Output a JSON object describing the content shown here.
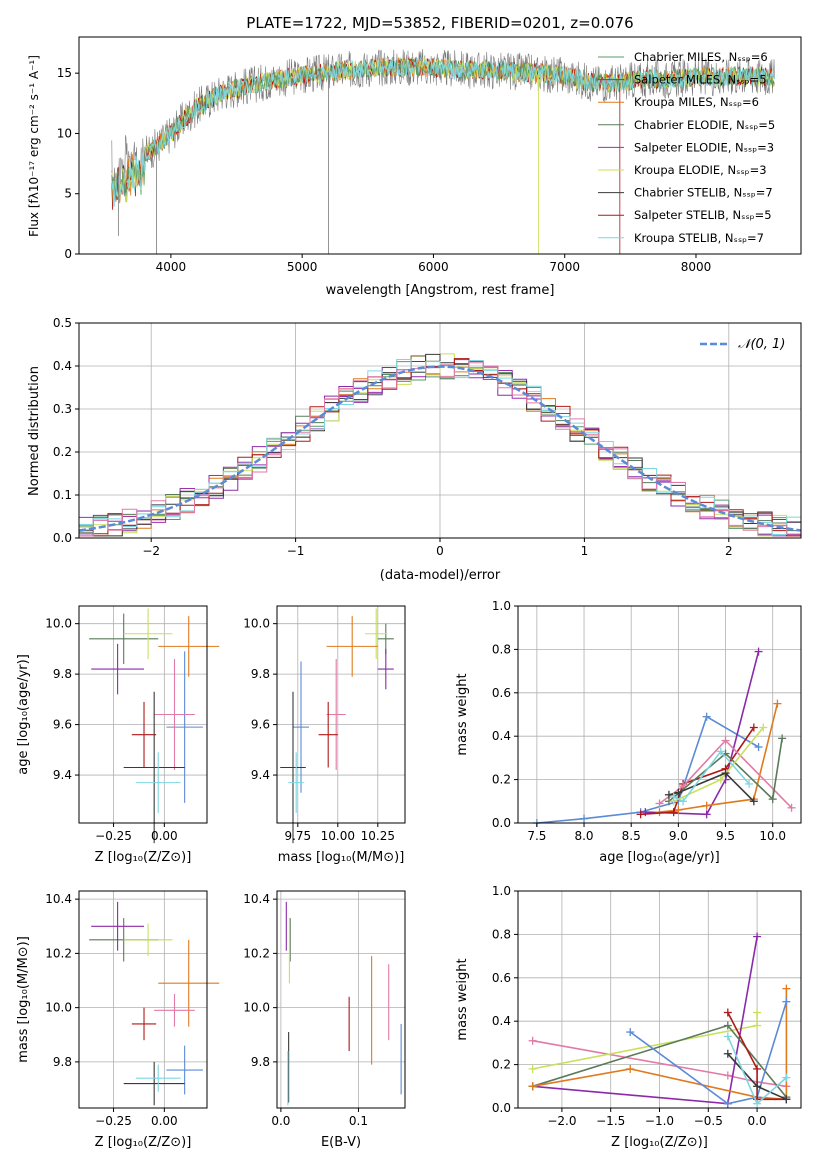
{
  "title": "PLATE=1722, MJD=53852, FIBERID=0201, z=0.076",
  "colors": {
    "ch_miles": "#5a9a6a",
    "sa_miles": "#8b2aa9",
    "kr_miles": "#e07a1f",
    "ch_elodie": "#5a7a5a",
    "sa_elodie": "#9b2fb0",
    "kr_elodie": "#c8e05a",
    "ch_stelib": "#3a3a3a",
    "sa_stelib": "#b01818",
    "kr_stelib": "#7fd6e0",
    "pink": "#e27aa6",
    "blue": "#5b8bd6",
    "normal_curve": "#5b8bd6"
  },
  "chart_data": [
    {
      "id": "spectrum",
      "type": "line",
      "xlabel": "wavelength [Angstrom, rest frame]",
      "ylabel": "Flux [fλ10⁻¹⁷ erg cm⁻² s⁻¹ A⁻¹]",
      "xlim": [
        3300,
        8800
      ],
      "ylim": [
        0,
        18
      ],
      "xticks": [
        "4000",
        "5000",
        "6000",
        "7000",
        "8000"
      ],
      "yticks": [
        "0",
        "5",
        "10",
        "15"
      ],
      "grid": false,
      "legend_position": "top-right",
      "legend": [
        {
          "label": "Chabrier MILES, Nₛₛₚ=6",
          "color_key": "ch_miles"
        },
        {
          "label": "Salpeter MILES, Nₛₛₚ=5",
          "color_key": "sa_miles"
        },
        {
          "label": "Kroupa MILES, Nₛₛₚ=6",
          "color_key": "kr_miles"
        },
        {
          "label": "Chabrier ELODIE, Nₛₛₚ=5",
          "color_key": "ch_elodie"
        },
        {
          "label": "Salpeter ELODIE, Nₛₛₚ=3",
          "color_key": "sa_elodie"
        },
        {
          "label": "Kroupa ELODIE, Nₛₛₚ=3",
          "color_key": "kr_elodie"
        },
        {
          "label": "Chabrier STELIB, Nₛₛₚ=7",
          "color_key": "ch_stelib"
        },
        {
          "label": "Salpeter STELIB, Nₛₛₚ=5",
          "color_key": "sa_stelib"
        },
        {
          "label": "Kroupa STELIB, Nₛₛₚ=7",
          "color_key": "kr_stelib"
        }
      ],
      "continuum_x": [
        3550,
        3700,
        3900,
        4000,
        4100,
        4200,
        4400,
        4600,
        4800,
        5000,
        5300,
        5600,
        5900,
        6200,
        6500,
        6800,
        7000,
        7200,
        7400,
        7600,
        7800,
        8000,
        8200,
        8400,
        8600
      ],
      "continuum_y": [
        6.5,
        7.5,
        9.0,
        10.0,
        11.2,
        12.2,
        13.5,
        14.0,
        14.5,
        14.8,
        15.2,
        15.5,
        15.5,
        15.3,
        15.2,
        15.0,
        14.8,
        14.2,
        14.2,
        14.5,
        14.5,
        14.7,
        14.7,
        14.8,
        14.6
      ]
    },
    {
      "id": "residuals",
      "type": "line",
      "xlabel": "(data-model)/error",
      "ylabel": "Normed distribution",
      "xlim": [
        -2.5,
        2.5
      ],
      "ylim": [
        0,
        0.5
      ],
      "xticks": [
        "−2",
        "−1",
        "0",
        "1",
        "2"
      ],
      "yticks": [
        "0.0",
        "0.1",
        "0.2",
        "0.3",
        "0.4",
        "0.5"
      ],
      "grid": true,
      "legend_position": "top-right",
      "legend": [
        {
          "label": "𝒩(0, 1)",
          "color_key": "normal_curve"
        }
      ]
    },
    {
      "id": "z_age",
      "type": "scatter",
      "xlabel": "Z [log₁₀(Z/Z⊙)]",
      "ylabel": "age  [log₁₀(age/yr)]",
      "xlim": [
        -0.42,
        0.21
      ],
      "ylim": [
        9.21,
        10.07
      ],
      "xticks": [
        {
          "v": -0.25,
          "t": "−0.25"
        },
        {
          "v": 0.0,
          "t": "0.00"
        }
      ],
      "yticks": [
        {
          "v": 9.4,
          "t": "9.4"
        },
        {
          "v": 9.6,
          "t": "9.6"
        },
        {
          "v": 9.8,
          "t": "9.8"
        },
        {
          "v": 10.0,
          "t": "10.0"
        }
      ],
      "grid": true,
      "crosses": [
        {
          "x": -0.2,
          "y": 9.94,
          "xerr": 0.17,
          "yerr": 0.1,
          "c": "ch_elodie"
        },
        {
          "x": -0.08,
          "y": 9.96,
          "xerr": 0.12,
          "yerr": 0.1,
          "c": "kr_elodie"
        },
        {
          "x": -0.23,
          "y": 9.82,
          "xerr": 0.13,
          "yerr": 0.1,
          "c": "sa_miles"
        },
        {
          "x": 0.12,
          "y": 9.91,
          "xerr": 0.15,
          "yerr": 0.12,
          "c": "kr_miles"
        },
        {
          "x": 0.1,
          "y": 9.59,
          "xerr": 0.09,
          "yerr": 0.3,
          "c": "blue"
        },
        {
          "x": 0.05,
          "y": 9.64,
          "xerr": 0.1,
          "yerr": 0.22,
          "c": "pink"
        },
        {
          "x": -0.1,
          "y": 9.56,
          "xerr": 0.06,
          "yerr": 0.13,
          "c": "sa_stelib"
        },
        {
          "x": -0.05,
          "y": 9.43,
          "xerr": 0.15,
          "yerr": 0.3,
          "c": "ch_stelib"
        },
        {
          "x": -0.03,
          "y": 9.37,
          "xerr": 0.11,
          "yerr": 0.12,
          "c": "kr_stelib"
        }
      ]
    },
    {
      "id": "mass_age",
      "type": "scatter",
      "xlabel": "mass [log₁₀(M/M⊙)]",
      "ylabel": "",
      "xlim": [
        9.62,
        10.42
      ],
      "ylim": [
        9.21,
        10.07
      ],
      "xticks": [
        {
          "v": 9.75,
          "t": "9.75"
        },
        {
          "v": 10.0,
          "t": "10.00"
        },
        {
          "v": 10.25,
          "t": "10.25"
        }
      ],
      "yticks": [
        {
          "v": 9.4,
          "t": "9.4"
        },
        {
          "v": 9.6,
          "t": "9.6"
        },
        {
          "v": 9.8,
          "t": "9.8"
        },
        {
          "v": 10.0,
          "t": "10.0"
        }
      ],
      "grid": true,
      "crosses": [
        {
          "x": 10.3,
          "y": 9.94,
          "xerr": 0.05,
          "yerr": 0.06,
          "c": "ch_elodie"
        },
        {
          "x": 10.24,
          "y": 9.96,
          "xerr": 0.07,
          "yerr": 0.1,
          "c": "kr_elodie"
        },
        {
          "x": 10.3,
          "y": 9.82,
          "xerr": 0.05,
          "yerr": 0.08,
          "c": "sa_miles"
        },
        {
          "x": 10.09,
          "y": 9.91,
          "xerr": 0.16,
          "yerr": 0.12,
          "c": "kr_miles"
        },
        {
          "x": 9.77,
          "y": 9.59,
          "xerr": 0.05,
          "yerr": 0.26,
          "c": "blue"
        },
        {
          "x": 9.99,
          "y": 9.64,
          "xerr": 0.06,
          "yerr": 0.22,
          "c": "pink"
        },
        {
          "x": 9.94,
          "y": 9.56,
          "xerr": 0.06,
          "yerr": 0.13,
          "c": "sa_stelib"
        },
        {
          "x": 9.72,
          "y": 9.43,
          "xerr": 0.08,
          "yerr": 0.3,
          "c": "ch_stelib"
        },
        {
          "x": 9.74,
          "y": 9.37,
          "xerr": 0.05,
          "yerr": 0.12,
          "c": "kr_stelib"
        }
      ]
    },
    {
      "id": "age_weight",
      "type": "line",
      "xlabel": "age  [log₁₀(age/yr)]",
      "ylabel": "mass weight",
      "xlim": [
        7.3,
        10.3
      ],
      "ylim": [
        0,
        1.0
      ],
      "xticks": [
        {
          "v": 7.5,
          "t": "7.5"
        },
        {
          "v": 8.0,
          "t": "8.0"
        },
        {
          "v": 8.5,
          "t": "8.5"
        },
        {
          "v": 9.0,
          "t": "9.0"
        },
        {
          "v": 9.5,
          "t": "9.5"
        },
        {
          "v": 10.0,
          "t": "10.0"
        }
      ],
      "yticks": [
        {
          "v": 0.0,
          "t": "0.0"
        },
        {
          "v": 0.2,
          "t": "0.2"
        },
        {
          "v": 0.4,
          "t": "0.4"
        },
        {
          "v": 0.6,
          "t": "0.6"
        },
        {
          "v": 0.8,
          "t": "0.8"
        },
        {
          "v": 1.0,
          "t": "1.0"
        }
      ],
      "grid": true,
      "series": [
        {
          "c": "blue",
          "x": [
            7.5,
            8.0,
            8.6,
            9.0,
            9.3,
            9.85
          ],
          "y": [
            0.0,
            0.02,
            0.05,
            0.1,
            0.49,
            0.35
          ]
        },
        {
          "c": "sa_miles",
          "x": [
            8.65,
            9.3,
            9.5,
            9.85
          ],
          "y": [
            0.05,
            0.04,
            0.2,
            0.79
          ]
        },
        {
          "c": "kr_miles",
          "x": [
            8.8,
            9.0,
            9.3,
            9.8,
            10.05
          ],
          "y": [
            0.05,
            0.06,
            0.08,
            0.11,
            0.55
          ]
        },
        {
          "c": "sa_stelib",
          "x": [
            8.6,
            8.95,
            9.05,
            9.5,
            9.8
          ],
          "y": [
            0.04,
            0.05,
            0.18,
            0.25,
            0.44
          ]
        },
        {
          "c": "pink",
          "x": [
            8.8,
            9.05,
            9.5,
            10.2
          ],
          "y": [
            0.09,
            0.17,
            0.38,
            0.07
          ]
        },
        {
          "c": "ch_elodie",
          "x": [
            8.9,
            9.5,
            10.0,
            10.1
          ],
          "y": [
            0.1,
            0.32,
            0.11,
            0.39
          ]
        },
        {
          "c": "kr_elodie",
          "x": [
            8.95,
            9.45,
            9.9
          ],
          "y": [
            0.1,
            0.2,
            0.44
          ]
        },
        {
          "c": "ch_stelib",
          "x": [
            8.9,
            9.0,
            9.5,
            9.8
          ],
          "y": [
            0.13,
            0.14,
            0.23,
            0.1
          ]
        },
        {
          "c": "kr_stelib",
          "x": [
            8.95,
            9.05,
            9.45,
            9.75
          ],
          "y": [
            0.12,
            0.1,
            0.33,
            0.18
          ]
        }
      ]
    },
    {
      "id": "z_mass",
      "type": "scatter",
      "xlabel": "Z [log₁₀(Z/Z⊙)]",
      "ylabel": "mass [log₁₀(M/M⊙)]",
      "xlim": [
        -0.42,
        0.21
      ],
      "ylim": [
        9.63,
        10.43
      ],
      "xticks": [
        {
          "v": -0.25,
          "t": "−0.25"
        },
        {
          "v": 0.0,
          "t": "0.00"
        }
      ],
      "yticks": [
        {
          "v": 9.8,
          "t": "9.8"
        },
        {
          "v": 10.0,
          "t": "10.0"
        },
        {
          "v": 10.2,
          "t": "10.2"
        },
        {
          "v": 10.4,
          "t": "10.4"
        }
      ],
      "grid": true,
      "crosses": [
        {
          "x": -0.2,
          "y": 10.25,
          "xerr": 0.17,
          "yerr": 0.08,
          "c": "ch_elodie"
        },
        {
          "x": -0.08,
          "y": 10.25,
          "xerr": 0.12,
          "yerr": 0.06,
          "c": "kr_elodie"
        },
        {
          "x": -0.23,
          "y": 10.3,
          "xerr": 0.13,
          "yerr": 0.09,
          "c": "sa_miles"
        },
        {
          "x": 0.12,
          "y": 10.09,
          "xerr": 0.15,
          "yerr": 0.16,
          "c": "kr_miles"
        },
        {
          "x": 0.1,
          "y": 9.77,
          "xerr": 0.09,
          "yerr": 0.09,
          "c": "blue"
        },
        {
          "x": 0.05,
          "y": 9.99,
          "xerr": 0.1,
          "yerr": 0.06,
          "c": "pink"
        },
        {
          "x": -0.1,
          "y": 9.94,
          "xerr": 0.06,
          "yerr": 0.06,
          "c": "sa_stelib"
        },
        {
          "x": -0.05,
          "y": 9.72,
          "xerr": 0.15,
          "yerr": 0.08,
          "c": "ch_stelib"
        },
        {
          "x": -0.03,
          "y": 9.74,
          "xerr": 0.11,
          "yerr": 0.05,
          "c": "kr_stelib"
        }
      ]
    },
    {
      "id": "ebv_mass",
      "type": "scatter",
      "xlabel": "E(B-V)",
      "ylabel": "",
      "xlim": [
        -0.005,
        0.16
      ],
      "ylim": [
        9.63,
        10.43
      ],
      "xticks": [
        {
          "v": 0.0,
          "t": "0.0"
        },
        {
          "v": 0.1,
          "t": "0.1"
        }
      ],
      "yticks": [
        {
          "v": 9.8,
          "t": "9.8"
        },
        {
          "v": 10.0,
          "t": "10.0"
        },
        {
          "v": 10.2,
          "t": "10.2"
        },
        {
          "v": 10.4,
          "t": "10.4"
        }
      ],
      "grid": true,
      "crosses": [
        {
          "x": 0.007,
          "y": 10.3,
          "xerr": 0.0,
          "yerr": 0.09,
          "c": "sa_miles"
        },
        {
          "x": 0.012,
          "y": 10.25,
          "xerr": 0.0,
          "yerr": 0.08,
          "c": "ch_elodie"
        },
        {
          "x": 0.011,
          "y": 10.21,
          "xerr": 0.0,
          "yerr": 0.12,
          "c": "kr_elodie"
        },
        {
          "x": 0.01,
          "y": 9.78,
          "xerr": 0.0,
          "yerr": 0.13,
          "c": "ch_stelib"
        },
        {
          "x": 0.009,
          "y": 9.74,
          "xerr": 0.0,
          "yerr": 0.1,
          "c": "kr_stelib"
        },
        {
          "x": 0.088,
          "y": 9.94,
          "xerr": 0.0,
          "yerr": 0.1,
          "c": "sa_stelib"
        },
        {
          "x": 0.117,
          "y": 9.99,
          "xerr": 0.0,
          "yerr": 0.2,
          "c": "kr_miles"
        },
        {
          "x": 0.139,
          "y": 10.02,
          "xerr": 0.0,
          "yerr": 0.14,
          "c": "pink"
        },
        {
          "x": 0.155,
          "y": 9.81,
          "xerr": 0.0,
          "yerr": 0.13,
          "c": "blue"
        }
      ]
    },
    {
      "id": "z_weight",
      "type": "line",
      "xlabel": "Z [log₁₀(Z/Z⊙)]",
      "ylabel": "mass weight",
      "xlim": [
        -2.45,
        0.45
      ],
      "ylim": [
        0,
        1.0
      ],
      "xticks": [
        {
          "v": -2.0,
          "t": "−2.0"
        },
        {
          "v": -1.5,
          "t": "−1.5"
        },
        {
          "v": -1.0,
          "t": "−1.0"
        },
        {
          "v": -0.5,
          "t": "−0.5"
        },
        {
          "v": 0.0,
          "t": "0.0"
        }
      ],
      "yticks": [
        {
          "v": 0.0,
          "t": "0.0"
        },
        {
          "v": 0.2,
          "t": "0.2"
        },
        {
          "v": 0.4,
          "t": "0.4"
        },
        {
          "v": 0.6,
          "t": "0.6"
        },
        {
          "v": 0.8,
          "t": "0.8"
        },
        {
          "v": 1.0,
          "t": "1.0"
        }
      ],
      "grid": true,
      "series": [
        {
          "c": "pink",
          "x": [
            -2.3,
            -0.3,
            0.0,
            0.3
          ],
          "y": [
            0.31,
            0.15,
            0.12,
            0.1
          ]
        },
        {
          "c": "kr_elodie",
          "x": [
            -2.3,
            0.0,
            0.0
          ],
          "y": [
            0.18,
            0.38,
            0.44
          ]
        },
        {
          "c": "sa_miles",
          "x": [
            -2.3,
            -0.3,
            0.0
          ],
          "y": [
            0.1,
            0.02,
            0.79
          ]
        },
        {
          "c": "ch_elodie",
          "x": [
            -2.3,
            -0.3,
            0.3
          ],
          "y": [
            0.1,
            0.38,
            0.05
          ]
        },
        {
          "c": "kr_miles",
          "x": [
            -2.3,
            -1.3,
            0.0,
            0.3,
            0.3
          ],
          "y": [
            0.1,
            0.18,
            0.05,
            0.04,
            0.55
          ]
        },
        {
          "c": "blue",
          "x": [
            -1.3,
            -0.3,
            0.0,
            0.3
          ],
          "y": [
            0.35,
            0.02,
            0.05,
            0.49
          ]
        },
        {
          "c": "sa_stelib",
          "x": [
            -0.3,
            0.0,
            0.0,
            0.3
          ],
          "y": [
            0.44,
            0.18,
            0.04,
            0.04
          ]
        },
        {
          "c": "ch_stelib",
          "x": [
            -0.3,
            0.0,
            0.3
          ],
          "y": [
            0.25,
            0.1,
            0.04
          ]
        },
        {
          "c": "kr_stelib",
          "x": [
            -0.3,
            0.0,
            0.3
          ],
          "y": [
            0.33,
            0.02,
            0.14
          ]
        }
      ]
    }
  ]
}
